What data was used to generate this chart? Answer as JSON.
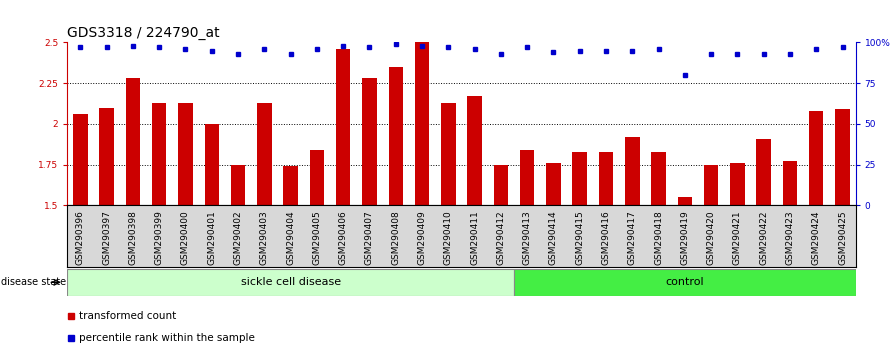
{
  "title": "GDS3318 / 224790_at",
  "samples": [
    "GSM290396",
    "GSM290397",
    "GSM290398",
    "GSM290399",
    "GSM290400",
    "GSM290401",
    "GSM290402",
    "GSM290403",
    "GSM290404",
    "GSM290405",
    "GSM290406",
    "GSM290407",
    "GSM290408",
    "GSM290409",
    "GSM290410",
    "GSM290411",
    "GSM290412",
    "GSM290413",
    "GSM290414",
    "GSM290415",
    "GSM290416",
    "GSM290417",
    "GSM290418",
    "GSM290419",
    "GSM290420",
    "GSM290421",
    "GSM290422",
    "GSM290423",
    "GSM290424",
    "GSM290425"
  ],
  "bar_values": [
    2.06,
    2.1,
    2.28,
    2.13,
    2.13,
    2.0,
    1.75,
    2.13,
    1.74,
    1.84,
    2.46,
    2.28,
    2.35,
    2.5,
    2.13,
    2.17,
    1.75,
    1.84,
    1.76,
    1.83,
    1.83,
    1.92,
    1.83,
    1.55,
    1.75,
    1.76,
    1.91,
    1.77,
    2.08,
    2.09
  ],
  "percentile_values": [
    97,
    97,
    98,
    97,
    96,
    95,
    93,
    96,
    93,
    96,
    98,
    97,
    99,
    98,
    97,
    96,
    93,
    97,
    94,
    95,
    95,
    95,
    96,
    80,
    93,
    93,
    93,
    93,
    96,
    97
  ],
  "sickle_count": 17,
  "control_count": 13,
  "bar_color": "#cc0000",
  "percentile_color": "#0000cc",
  "sickle_color": "#ccffcc",
  "control_color": "#44ee44",
  "ylim_left": [
    1.5,
    2.5
  ],
  "ylim_right": [
    0,
    100
  ],
  "yticks_left": [
    1.5,
    1.75,
    2.0,
    2.25,
    2.5
  ],
  "ytick_labels_left": [
    "1.5",
    "1.75",
    "2",
    "2.25",
    "2.5"
  ],
  "yticks_right": [
    0,
    25,
    50,
    75,
    100
  ],
  "ytick_labels_right": [
    "0",
    "25",
    "50",
    "75",
    "100%"
  ],
  "hlines": [
    1.75,
    2.0,
    2.25
  ],
  "title_fontsize": 10,
  "tick_fontsize": 6.5,
  "label_fontsize": 8
}
